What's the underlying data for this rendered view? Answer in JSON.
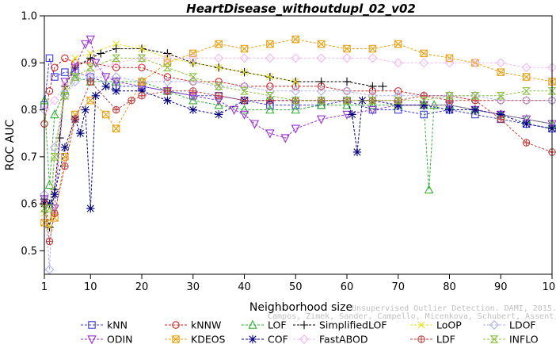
{
  "chart_data": {
    "type": "line",
    "title": "HeartDisease_withoutdupl_02_v02",
    "xlabel": "Neighborhood size",
    "ylabel": "ROC AUC",
    "xlim": [
      1,
      100
    ],
    "ylim": [
      0.45,
      1.0
    ],
    "xticks": [
      1,
      10,
      20,
      30,
      40,
      50,
      60,
      70,
      80,
      90,
      100
    ],
    "yticks": [
      0.5,
      0.6,
      0.7,
      0.8,
      0.9,
      1.0
    ],
    "legend_position": "bottom",
    "watermark": [
      "Unsupervised Outlier Detection. DAMI, 2015.",
      "Campos, Zimek, Sander, Campello, Micenkova, Schubert, Assent, Houle"
    ],
    "series": [
      {
        "name": "kNN",
        "color": "#3a3adf",
        "marker": "square",
        "x": [
          1,
          2,
          3,
          5,
          7,
          10,
          15,
          20,
          25,
          30,
          35,
          40,
          45,
          50,
          55,
          60,
          65,
          70,
          75,
          80,
          85,
          90,
          95,
          100
        ],
        "y": [
          0.81,
          0.91,
          0.87,
          0.88,
          0.88,
          0.87,
          0.85,
          0.85,
          0.84,
          0.83,
          0.83,
          0.82,
          0.81,
          0.81,
          0.81,
          0.82,
          0.8,
          0.8,
          0.79,
          0.8,
          0.79,
          0.78,
          0.77,
          0.76
        ]
      },
      {
        "name": "kNNW",
        "color": "#d02020",
        "marker": "circle",
        "x": [
          1,
          2,
          3,
          5,
          7,
          10,
          15,
          20,
          25,
          30,
          35,
          40,
          45,
          50,
          55,
          60,
          65,
          70,
          75,
          80,
          85,
          90,
          95,
          100
        ],
        "y": [
          0.77,
          0.84,
          0.89,
          0.91,
          0.9,
          0.9,
          0.89,
          0.89,
          0.87,
          0.86,
          0.86,
          0.85,
          0.85,
          0.85,
          0.85,
          0.84,
          0.84,
          0.84,
          0.83,
          0.83,
          0.82,
          0.82,
          0.82,
          0.82
        ]
      },
      {
        "name": "LOF",
        "color": "#30b030",
        "marker": "triangle-up",
        "x": [
          1,
          2,
          3,
          5,
          7,
          10,
          15,
          20,
          25,
          30,
          35,
          40,
          45,
          50,
          55,
          60,
          65,
          70,
          75,
          76,
          77,
          80,
          85,
          90,
          95,
          100
        ],
        "y": [
          0.82,
          0.64,
          0.79,
          0.84,
          0.87,
          0.86,
          0.86,
          0.86,
          0.84,
          0.82,
          0.81,
          0.8,
          0.8,
          0.8,
          0.81,
          0.81,
          0.81,
          0.81,
          0.81,
          0.63,
          0.81,
          0.81,
          0.8,
          0.79,
          0.78,
          0.77
        ]
      },
      {
        "name": "SimplifiedLOF",
        "color": "#000000",
        "marker": "plus",
        "x": [
          1,
          2,
          3,
          4,
          5,
          7,
          10,
          12,
          15,
          20,
          25,
          30,
          35,
          40,
          45,
          50,
          55,
          60,
          65,
          67
        ],
        "y": [
          0.61,
          0.55,
          0.63,
          0.74,
          0.85,
          0.89,
          0.91,
          0.92,
          0.93,
          0.93,
          0.92,
          0.9,
          0.89,
          0.88,
          0.87,
          0.86,
          0.86,
          0.86,
          0.85,
          0.85
        ]
      },
      {
        "name": "LoOP",
        "color": "#e8e020",
        "marker": "cross",
        "x": [
          1,
          2,
          3,
          5,
          7,
          10,
          15,
          20,
          25,
          30,
          35,
          40,
          45,
          50
        ],
        "y": [
          0.58,
          0.55,
          0.7,
          0.85,
          0.91,
          0.92,
          0.94,
          0.93,
          0.91,
          0.9,
          0.89,
          0.88,
          0.87,
          0.86
        ]
      },
      {
        "name": "LDOF",
        "color": "#b0b0e8",
        "marker": "diamond",
        "x": [
          1,
          2,
          3,
          5,
          7,
          10,
          15,
          20,
          25,
          30,
          35,
          40,
          45,
          50,
          55,
          60,
          65,
          70,
          75,
          80,
          85,
          90,
          95,
          100
        ],
        "y": [
          0.62,
          0.46,
          0.72,
          0.83,
          0.86,
          0.87,
          0.87,
          0.86,
          0.86,
          0.86,
          0.85,
          0.85,
          0.84,
          0.84,
          0.84,
          0.84,
          0.83,
          0.83,
          0.83,
          0.83,
          0.83,
          0.82,
          0.82,
          0.82
        ]
      },
      {
        "name": "ODIN",
        "color": "#9a30d0",
        "marker": "triangle-down",
        "x": [
          1,
          3,
          5,
          7,
          9,
          10,
          11,
          13,
          15,
          20,
          25,
          30,
          35,
          38,
          40,
          42,
          45,
          48,
          50,
          55,
          60,
          65,
          70,
          75,
          80,
          85,
          90,
          95,
          100
        ],
        "y": [
          0.61,
          0.59,
          0.86,
          0.89,
          0.94,
          0.95,
          0.9,
          0.87,
          0.86,
          0.85,
          0.84,
          0.83,
          0.82,
          0.8,
          0.79,
          0.77,
          0.75,
          0.74,
          0.76,
          0.78,
          0.79,
          0.8,
          0.81,
          0.81,
          0.81,
          0.8,
          0.79,
          0.78,
          0.77
        ]
      },
      {
        "name": "KDEOS",
        "color": "#e8a010",
        "marker": "square-x",
        "x": [
          1,
          3,
          5,
          7,
          10,
          13,
          15,
          20,
          25,
          30,
          35,
          40,
          45,
          50,
          55,
          60,
          65,
          70,
          75,
          80,
          85,
          90,
          95,
          100
        ],
        "y": [
          0.56,
          0.57,
          0.7,
          0.79,
          0.82,
          0.79,
          0.76,
          0.86,
          0.9,
          0.92,
          0.94,
          0.93,
          0.94,
          0.95,
          0.94,
          0.93,
          0.93,
          0.94,
          0.92,
          0.91,
          0.9,
          0.88,
          0.87,
          0.86
        ]
      },
      {
        "name": "COF",
        "color": "#000080",
        "marker": "asterisk",
        "x": [
          1,
          2,
          3,
          5,
          7,
          8,
          9,
          10,
          11,
          13,
          15,
          20,
          25,
          30,
          35,
          40,
          45,
          50,
          55,
          60,
          61,
          62,
          63,
          65,
          70,
          75,
          80,
          85,
          90,
          95,
          100
        ],
        "y": [
          0.6,
          0.6,
          0.62,
          0.72,
          0.78,
          0.75,
          0.8,
          0.59,
          0.83,
          0.85,
          0.84,
          0.84,
          0.82,
          0.8,
          0.79,
          0.82,
          0.82,
          0.82,
          0.82,
          0.82,
          0.79,
          0.71,
          0.82,
          0.82,
          0.81,
          0.81,
          0.8,
          0.8,
          0.79,
          0.77,
          0.76
        ]
      },
      {
        "name": "FastABOD",
        "color": "#f0b8f0",
        "marker": "diamond",
        "x": [
          1,
          3,
          5,
          7,
          10,
          15,
          20,
          25,
          30,
          35,
          40,
          45,
          50,
          55,
          60,
          65,
          70,
          75,
          80,
          85,
          90,
          95,
          100
        ],
        "y": [
          0.8,
          0.82,
          0.85,
          0.87,
          0.88,
          0.9,
          0.91,
          0.91,
          0.91,
          0.91,
          0.91,
          0.91,
          0.91,
          0.91,
          0.91,
          0.91,
          0.9,
          0.9,
          0.9,
          0.9,
          0.9,
          0.89,
          0.89
        ]
      },
      {
        "name": "LDF",
        "color": "#c04040",
        "marker": "circle-plus",
        "x": [
          1,
          2,
          3,
          5,
          7,
          10,
          15,
          18,
          20,
          25,
          30,
          35,
          40,
          45,
          50,
          55,
          60,
          65,
          70,
          75,
          80,
          85,
          90,
          95,
          100
        ],
        "y": [
          0.6,
          0.52,
          0.58,
          0.68,
          0.78,
          0.86,
          0.8,
          0.82,
          0.83,
          0.84,
          0.84,
          0.83,
          0.82,
          0.82,
          0.82,
          0.82,
          0.82,
          0.82,
          0.82,
          0.83,
          0.82,
          0.82,
          0.78,
          0.73,
          0.71
        ]
      },
      {
        "name": "INFLO",
        "color": "#88c040",
        "marker": "hourglass",
        "x": [
          1,
          2,
          3,
          5,
          7,
          10,
          15,
          20,
          25,
          30,
          35,
          40,
          45,
          50,
          55,
          60,
          65,
          70,
          75,
          80,
          85,
          90,
          95,
          100
        ],
        "y": [
          0.59,
          0.59,
          0.7,
          0.83,
          0.87,
          0.89,
          0.91,
          0.91,
          0.89,
          0.87,
          0.85,
          0.84,
          0.83,
          0.82,
          0.82,
          0.82,
          0.82,
          0.82,
          0.82,
          0.83,
          0.83,
          0.83,
          0.84,
          0.84
        ]
      }
    ]
  }
}
